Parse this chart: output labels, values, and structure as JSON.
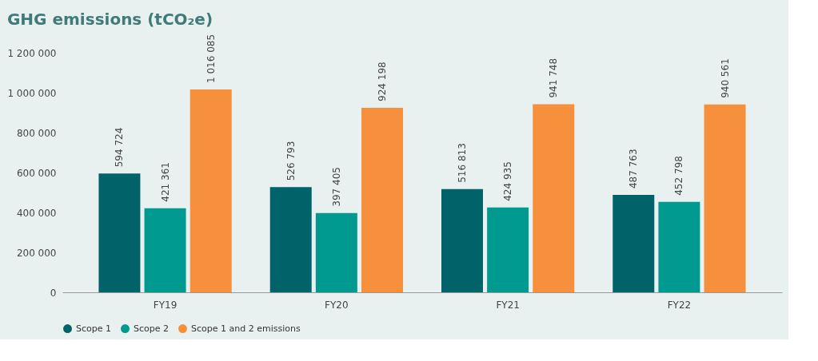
{
  "chart_data": {
    "type": "bar",
    "title": "GHG emissions (tCO₂e)",
    "categories": [
      "FY19",
      "FY20",
      "FY21",
      "FY22"
    ],
    "series": [
      {
        "name": "Scope 1",
        "color": "#00636a",
        "values": [
          594724,
          526793,
          516813,
          487763
        ],
        "value_labels": [
          "594 724",
          "526 793",
          "516 813",
          "487 763"
        ]
      },
      {
        "name": "Scope 2",
        "color": "#009a90",
        "values": [
          421361,
          397405,
          424935,
          452798
        ],
        "value_labels": [
          "421 361",
          "397 405",
          "424 935",
          "452 798"
        ]
      },
      {
        "name": "Scope 1 and 2 emissions",
        "color": "#f6903d",
        "values": [
          1016085,
          924198,
          941748,
          940561
        ],
        "value_labels": [
          "1 016 085",
          "924 198",
          "941 748",
          "940 561"
        ]
      }
    ],
    "ylim": [
      0,
      1200000
    ],
    "yticks": [
      0,
      {
        "value": 200000,
        "label": "200 000"
      },
      {
        "value": 400000,
        "label": "400 000"
      },
      {
        "value": 600000,
        "label": "600 000"
      },
      {
        "value": 800000,
        "label": "800 000"
      },
      {
        "value": 1000000,
        "label": "1 000 000"
      },
      {
        "value": 1200000,
        "label": "1 200 000"
      }
    ],
    "grid": false,
    "legend": "bottom left"
  }
}
